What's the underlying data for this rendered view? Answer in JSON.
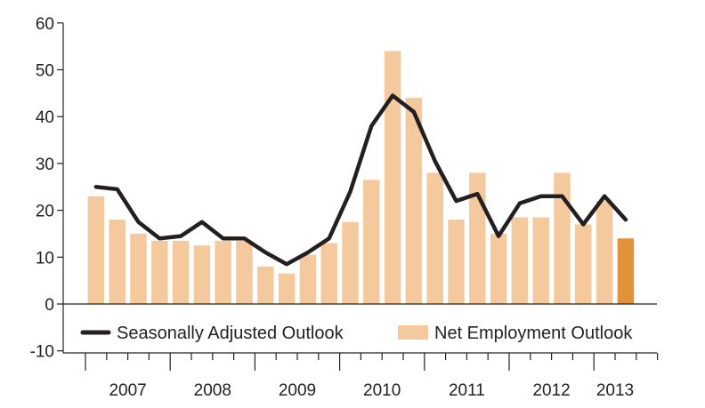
{
  "chart_data": {
    "type": "bar",
    "title": "",
    "xlabel": "",
    "ylabel": "",
    "ylim": [
      -10,
      60
    ],
    "yticks": [
      -10,
      0,
      10,
      20,
      30,
      40,
      50,
      60
    ],
    "grid": false,
    "legend_position": "bottom",
    "year_labels": [
      "2007",
      "2008",
      "2009",
      "2010",
      "2011",
      "2012",
      "2013"
    ],
    "quarters_per_year": 4,
    "series": [
      {
        "name": "Net Employment Outlook",
        "kind": "bar",
        "color": "#f3c99d",
        "highlight_color": "#e2923a",
        "highlight_last": true,
        "values": [
          23,
          18,
          15,
          13.5,
          13.5,
          12.5,
          13.5,
          13.5,
          8,
          6.5,
          10.5,
          13,
          17.5,
          26.5,
          54,
          44,
          28,
          18,
          28,
          15,
          18.5,
          18.5,
          28,
          17,
          22,
          14
        ]
      },
      {
        "name": "Seasonally Adjusted Outlook",
        "kind": "line",
        "color": "#231f20",
        "values": [
          25,
          24.5,
          17.5,
          14,
          14.5,
          17.5,
          14,
          14,
          11,
          8.5,
          11,
          14,
          24,
          38,
          44.5,
          41,
          30.5,
          22,
          23.5,
          14.5,
          21.5,
          23,
          23,
          17,
          23,
          18
        ]
      }
    ]
  }
}
